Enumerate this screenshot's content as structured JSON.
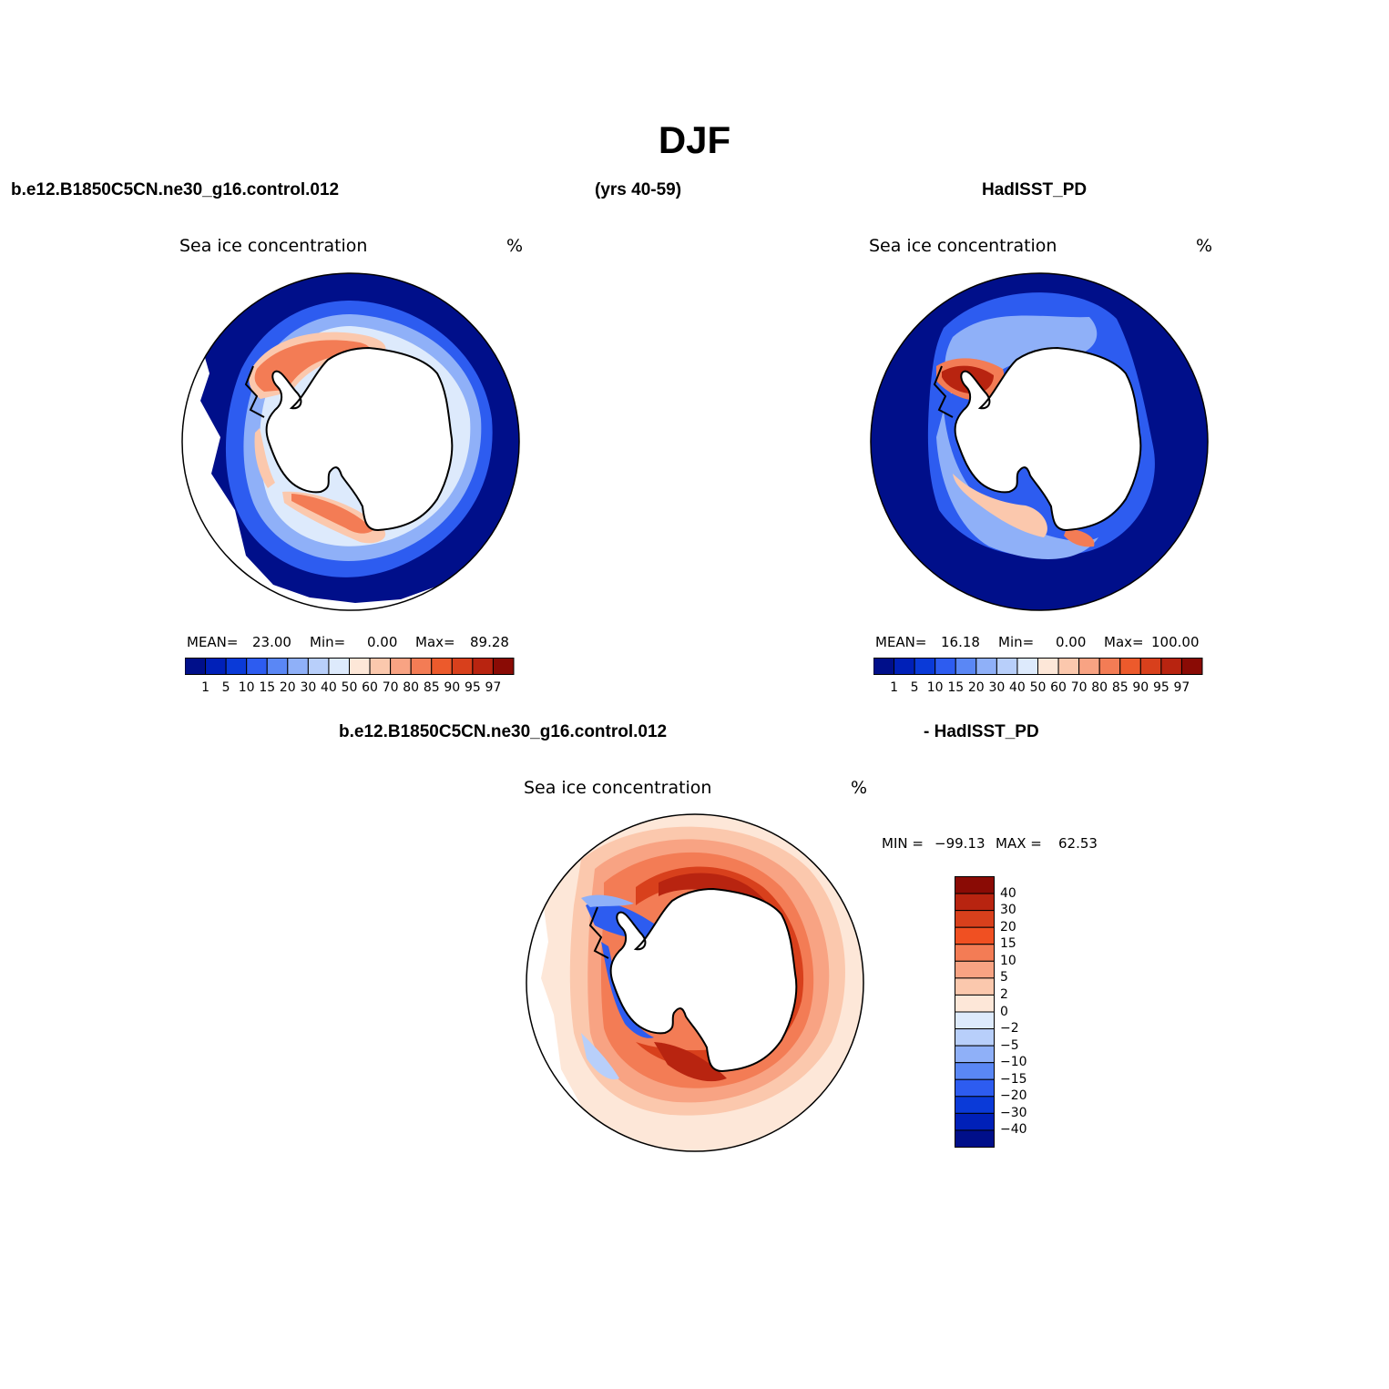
{
  "figure": {
    "title": "DJF",
    "case_name": "b.e12.B1850C5CN.ne30_g16.control.012",
    "years": "(yrs 40-59)",
    "obs_name": "HadISST_PD",
    "diff_left": "b.e12.B1850C5CN.ne30_g16.control.012",
    "diff_right": "- HadISST_PD"
  },
  "panels": {
    "model": {
      "title": "Sea ice concentration",
      "units": "%",
      "mean_label": "MEAN=",
      "mean_value": "23.00",
      "min_label": "Min=",
      "min_value": "0.00",
      "max_label": "Max=",
      "max_value": "89.28"
    },
    "obs": {
      "title": "Sea ice concentration",
      "units": "%",
      "mean_label": "MEAN=",
      "mean_value": "16.18",
      "min_label": "Min=",
      "min_value": "0.00",
      "max_label": "Max=",
      "max_value": "100.00"
    },
    "diff": {
      "title": "Sea ice concentration",
      "units": "%",
      "min_label": "MIN =",
      "min_value": "−99.13",
      "max_label": "MAX =",
      "max_value": "62.53"
    }
  },
  "colorbars": {
    "concentration": {
      "labels": [
        "1",
        "5",
        "10",
        "15",
        "20",
        "30",
        "40",
        "50",
        "60",
        "70",
        "80",
        "85",
        "90",
        "95",
        "97"
      ],
      "colors": [
        "#000f8a",
        "#0020b8",
        "#0a3ad8",
        "#2d5cf0",
        "#5a87f5",
        "#8fb0f8",
        "#b8cffa",
        "#ddeafc",
        "#fde7d8",
        "#fbc8ad",
        "#f8a383",
        "#f37c55",
        "#ec5a2c",
        "#d8401c",
        "#b82410",
        "#8a0b05"
      ]
    },
    "difference": {
      "labels": [
        "40",
        "30",
        "20",
        "15",
        "10",
        "5",
        "2",
        "0",
        "−2",
        "−5",
        "−10",
        "−15",
        "−20",
        "−30",
        "−40"
      ],
      "colors": [
        "#8a0b05",
        "#b82410",
        "#d8401c",
        "#f05022",
        "#f37c55",
        "#f8a383",
        "#fbc8ad",
        "#fde7d8",
        "#ddeafc",
        "#b8cffa",
        "#8fb0f8",
        "#5a87f5",
        "#2d5cf0",
        "#0a3ad8",
        "#0020b8",
        "#000f8a"
      ]
    }
  }
}
